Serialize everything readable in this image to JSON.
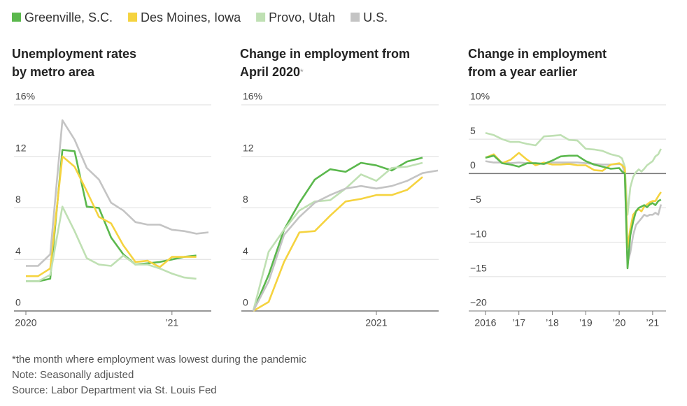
{
  "chart_data": [
    {
      "type": "line",
      "title": "Unemployment rates by metro area",
      "categories": [
        "2020",
        null,
        null,
        null,
        null,
        null,
        null,
        null,
        null,
        null,
        null,
        null,
        "’21",
        null,
        null,
        null
      ],
      "series": [
        {
          "name": "Greenville, S.C.",
          "color": "#5bb84d",
          "values": [
            2.3,
            2.3,
            2.5,
            12.5,
            12.4,
            8.1,
            8.0,
            5.7,
            4.4,
            3.6,
            3.7,
            3.8,
            4.0,
            4.2,
            4.3,
            null
          ]
        },
        {
          "name": "Des Moines, Iowa",
          "color": "#f5d33f",
          "values": [
            2.7,
            2.7,
            3.3,
            12.0,
            11.2,
            9.3,
            7.3,
            6.8,
            5.1,
            3.8,
            3.9,
            3.4,
            4.2,
            4.2,
            4.2,
            null
          ]
        },
        {
          "name": "Provo, Utah",
          "color": "#bfe0b3",
          "values": [
            2.3,
            2.3,
            2.8,
            8.1,
            6.2,
            4.1,
            3.6,
            3.5,
            4.3,
            3.6,
            3.6,
            3.3,
            2.9,
            2.6,
            2.5,
            null
          ]
        },
        {
          "name": "U.S.",
          "color": "#c4c4c4",
          "values": [
            3.5,
            3.5,
            4.4,
            14.8,
            13.3,
            11.1,
            10.2,
            8.4,
            7.8,
            6.9,
            6.7,
            6.7,
            6.3,
            6.2,
            6.0,
            6.1
          ]
        }
      ],
      "ylim": [
        0,
        16
      ],
      "yticks": [
        0,
        4,
        8,
        12,
        {
          "value": 16,
          "label": "16%"
        }
      ],
      "grid": true
    },
    {
      "type": "line",
      "title": "Change in employment from April 2020",
      "title_mark": "*",
      "categories": [
        null,
        null,
        null,
        null,
        null,
        null,
        null,
        null,
        "2021",
        null,
        null,
        null,
        null
      ],
      "series": [
        {
          "color": "#5bb84d",
          "values": [
            0,
            2.8,
            6.3,
            8.4,
            10.2,
            11.0,
            10.8,
            11.5,
            11.3,
            10.9,
            11.6,
            11.9,
            null
          ]
        },
        {
          "color": "#f5d33f",
          "values": [
            0,
            0.7,
            3.8,
            6.1,
            6.2,
            7.4,
            8.5,
            8.7,
            9.0,
            9.0,
            9.4,
            10.4,
            null
          ]
        },
        {
          "color": "#bfe0b3",
          "values": [
            0,
            4.6,
            6.3,
            7.8,
            8.5,
            8.6,
            9.5,
            10.6,
            10.1,
            11.1,
            11.2,
            11.5,
            null
          ]
        },
        {
          "color": "#c4c4c4",
          "values": [
            0,
            2.3,
            5.9,
            7.3,
            8.4,
            9.0,
            9.5,
            9.7,
            9.5,
            9.7,
            10.1,
            10.7,
            10.9
          ]
        }
      ],
      "ylim": [
        0,
        16
      ],
      "yticks": [
        0,
        4,
        8,
        12,
        {
          "value": 16,
          "label": "16%"
        }
      ],
      "grid": true
    },
    {
      "type": "line",
      "title": "Change in employment from a year earlier",
      "x": [
        2016.0,
        2016.25,
        2016.5,
        2016.75,
        2017.0,
        2017.25,
        2017.5,
        2017.75,
        2018.0,
        2018.25,
        2018.5,
        2018.75,
        2019.0,
        2019.25,
        2019.5,
        2019.75,
        2020.0,
        2020.083,
        2020.167,
        2020.25,
        2020.333,
        2020.417,
        2020.5,
        2020.583,
        2020.667,
        2020.75,
        2020.833,
        2020.917,
        2021.0,
        2021.083,
        2021.167,
        2021.25
      ],
      "series": [
        {
          "color": "#bfe0b3",
          "values": [
            5.9,
            5.6,
            5.0,
            4.6,
            4.6,
            4.3,
            4.1,
            5.4,
            5.5,
            5.6,
            4.9,
            4.8,
            3.6,
            3.5,
            3.3,
            2.8,
            2.5,
            2.2,
            1.0,
            -6.0,
            -2.0,
            -0.5,
            0.2,
            0.6,
            0.3,
            0.7,
            1.2,
            1.5,
            1.8,
            2.5,
            2.8,
            3.6
          ]
        },
        {
          "color": "#c4c4c4",
          "values": [
            1.8,
            1.6,
            1.6,
            1.5,
            1.6,
            1.5,
            1.5,
            1.4,
            1.6,
            1.6,
            1.6,
            1.6,
            1.5,
            1.4,
            1.3,
            1.3,
            1.4,
            1.3,
            0.0,
            -13.0,
            -11.5,
            -9.0,
            -7.5,
            -7.0,
            -6.5,
            -6.0,
            -6.2,
            -6.0,
            -6.0,
            -5.7,
            -6.0,
            -4.5
          ]
        },
        {
          "color": "#f5d33f",
          "values": [
            2.3,
            2.8,
            1.5,
            2.0,
            3.0,
            2.0,
            1.2,
            1.6,
            1.3,
            1.3,
            1.4,
            1.2,
            1.2,
            0.5,
            0.4,
            1.3,
            1.5,
            1.2,
            0.8,
            -10.8,
            -8.0,
            -6.0,
            -5.5,
            -5.2,
            -5.5,
            -4.8,
            -4.5,
            -4.2,
            -4.0,
            -4.0,
            -3.3,
            -2.7
          ]
        },
        {
          "color": "#5bb84d",
          "values": [
            2.3,
            2.6,
            1.5,
            1.3,
            1.0,
            1.5,
            1.5,
            1.4,
            1.9,
            2.5,
            2.6,
            2.6,
            1.8,
            1.3,
            1.0,
            0.7,
            0.8,
            0.3,
            0.0,
            -13.8,
            -9.0,
            -7.0,
            -5.5,
            -5.0,
            -4.8,
            -4.6,
            -4.9,
            -4.5,
            -4.3,
            -4.6,
            -4.0,
            -3.8
          ]
        }
      ],
      "xlim": [
        2015.5,
        2021.4
      ],
      "xticks": [
        {
          "value": 2016,
          "label": "2016"
        },
        {
          "value": 2017,
          "label": "’17"
        },
        {
          "value": 2018,
          "label": "’18"
        },
        {
          "value": 2019,
          "label": "’19"
        },
        {
          "value": 2020,
          "label": "’20"
        },
        {
          "value": 2021,
          "label": "’21"
        }
      ],
      "ylim": [
        -20,
        10
      ],
      "yticks": [
        {
          "value": -20,
          "label": "−20"
        },
        {
          "value": -15,
          "label": "−15"
        },
        {
          "value": -10,
          "label": "−10"
        },
        {
          "value": -5,
          "label": "−5"
        },
        0,
        5,
        {
          "value": 10,
          "label": "10%"
        }
      ],
      "grid": true
    }
  ],
  "notes": [
    "*the month where employment was lowest during the pandemic",
    "Note: Seasonally adjusted",
    "Source: Labor Department via St. Louis Fed"
  ]
}
